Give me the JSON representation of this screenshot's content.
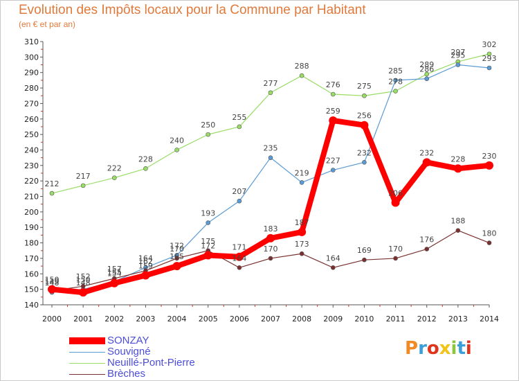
{
  "header": {
    "title": "Evolution des Impôts locaux pour la Commune par Habitant",
    "subtitle": "(en € et par an)"
  },
  "logo": {
    "text": "Proxiti",
    "colors": [
      "#f08a24",
      "#3aa0d8",
      "#e0341c",
      "#f0c419",
      "#8cc63f",
      "#3aa0d8",
      "#e0341c"
    ]
  },
  "chart_data": {
    "type": "line",
    "title": "Evolution des Impôts locaux pour la Commune par Habitant",
    "subtitle": "(en € et par an)",
    "x": [
      "2000",
      "2001",
      "2002",
      "2003",
      "2004",
      "2005",
      "2006",
      "2007",
      "2008",
      "2009",
      "2010",
      "2011",
      "2012",
      "2013",
      "2014"
    ],
    "ylim": [
      140,
      310
    ],
    "yticks": [
      140,
      150,
      160,
      170,
      180,
      190,
      200,
      210,
      220,
      230,
      240,
      250,
      260,
      270,
      280,
      290,
      300,
      310
    ],
    "grid": false,
    "legend_position": "bottom-left",
    "series": [
      {
        "name": "SONZAY",
        "color": "#ff0000",
        "values": [
          150,
          148,
          154,
          159,
          165,
          172,
          171,
          183,
          187,
          259,
          256,
          206,
          232,
          228,
          230
        ]
      },
      {
        "name": "Souvigné",
        "color": "#5b9bd5",
        "values": [
          148,
          150,
          155,
          164,
          172,
          193,
          207,
          235,
          219,
          227,
          232,
          285,
          286,
          295,
          293
        ]
      },
      {
        "name": "Neuillé-Pont-Pierre",
        "color": "#99dd66",
        "values": [
          212,
          217,
          222,
          228,
          240,
          250,
          255,
          277,
          288,
          276,
          275,
          278,
          289,
          297,
          302
        ]
      },
      {
        "name": "Brèches",
        "color": "#7a3030",
        "values": [
          149,
          152,
          157,
          162,
          170,
          175,
          164,
          170,
          173,
          164,
          169,
          170,
          176,
          188,
          180
        ]
      }
    ]
  }
}
